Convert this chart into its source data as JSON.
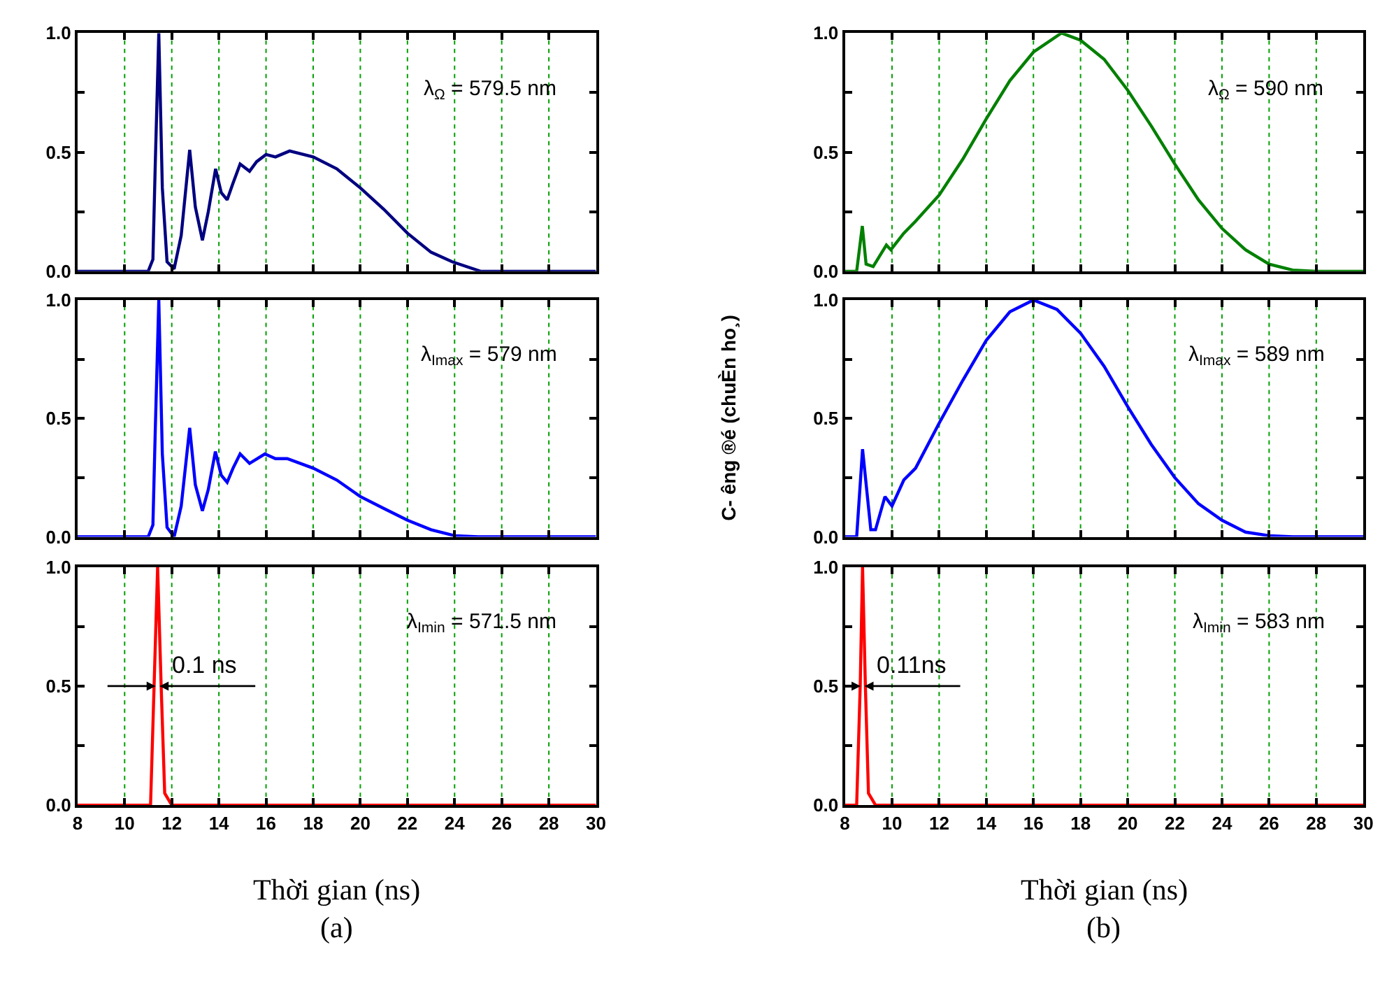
{
  "chart_data": [
    {
      "type": "line",
      "x": [
        8,
        11.0,
        11.2,
        11.3,
        11.45,
        11.6,
        11.8,
        12.1,
        12.4,
        12.76,
        13.0,
        13.3,
        13.55,
        13.86,
        14.1,
        14.35,
        14.6,
        14.9,
        15.3,
        15.6,
        16.0,
        16.4,
        17.0,
        18.0,
        19.0,
        20.0,
        21.0,
        22.0,
        23.0,
        23.9,
        25.1,
        26,
        30
      ],
      "series": [
        {
          "color": "#000080",
          "values": [
            0,
            0,
            0.05,
            0.45,
            1.0,
            0.35,
            0.04,
            0.01,
            0.15,
            0.51,
            0.27,
            0.13,
            0.25,
            0.43,
            0.33,
            0.3,
            0.37,
            0.45,
            0.42,
            0.46,
            0.49,
            0.48,
            0.505,
            0.48,
            0.43,
            0.35,
            0.26,
            0.16,
            0.08,
            0.04,
            0.0,
            0,
            0
          ]
        }
      ],
      "xlim": [
        8,
        30
      ],
      "xticks": [
        8,
        10,
        12,
        14,
        16,
        18,
        20,
        22,
        24,
        26,
        28,
        30
      ],
      "ylim": [
        0,
        1
      ],
      "yticks": [
        {
          "value": 0,
          "label": "0.0"
        },
        {
          "value": 0.25,
          "label": null
        },
        {
          "value": 0.5,
          "label": "0.5"
        },
        {
          "value": 0.75,
          "label": null
        },
        {
          "value": 1,
          "label": "1.0"
        }
      ],
      "grid": "x",
      "tick_labels": "y",
      "annotations": [
        "λ$_{Ω}$ = 579.5 nm"
      ]
    },
    {
      "type": "line",
      "x": [
        8,
        11.0,
        11.2,
        11.3,
        11.45,
        11.6,
        11.8,
        12.1,
        12.4,
        12.76,
        13.0,
        13.3,
        13.55,
        13.85,
        14.1,
        14.35,
        14.6,
        14.9,
        15.3,
        15.95,
        16.4,
        16.9,
        18.0,
        19.0,
        20.0,
        21.0,
        22.0,
        23.0,
        24.0,
        25.0,
        30
      ],
      "series": [
        {
          "color": "#0000ff",
          "values": [
            0,
            0,
            0.05,
            0.45,
            1.0,
            0.35,
            0.04,
            0.0,
            0.13,
            0.46,
            0.22,
            0.11,
            0.2,
            0.36,
            0.26,
            0.23,
            0.29,
            0.35,
            0.31,
            0.35,
            0.33,
            0.33,
            0.29,
            0.24,
            0.17,
            0.12,
            0.07,
            0.03,
            0.005,
            0,
            0
          ]
        }
      ],
      "xlim": [
        8,
        30
      ],
      "xticks": [
        8,
        10,
        12,
        14,
        16,
        18,
        20,
        22,
        24,
        26,
        28,
        30
      ],
      "ylim": [
        0,
        1
      ],
      "yticks": [
        {
          "value": 0,
          "label": "0.0"
        },
        {
          "value": 0.25,
          "label": null
        },
        {
          "value": 0.5,
          "label": "0.5"
        },
        {
          "value": 0.75,
          "label": null
        },
        {
          "value": 1,
          "label": "1.0"
        }
      ],
      "grid": "x",
      "tick_labels": "y",
      "annotations": [
        "λ$_{Imax}$ = 579 nm"
      ]
    },
    {
      "type": "line",
      "x": [
        8,
        11.1,
        11.25,
        11.4,
        11.55,
        11.7,
        12.0,
        30
      ],
      "series": [
        {
          "color": "#ff0000",
          "values": [
            0,
            0,
            0.5,
            1.0,
            0.5,
            0.05,
            0,
            0
          ]
        }
      ],
      "xlim": [
        8,
        30
      ],
      "xticks": [
        8,
        10,
        12,
        14,
        16,
        18,
        20,
        22,
        24,
        26,
        28,
        30
      ],
      "ylim": [
        0,
        1
      ],
      "yticks": [
        {
          "value": 0,
          "label": "0.0"
        },
        {
          "value": 0.25,
          "label": null
        },
        {
          "value": 0.5,
          "label": "0.5"
        },
        {
          "value": 0.75,
          "label": null
        },
        {
          "value": 1,
          "label": "1.0"
        }
      ],
      "grid": "x",
      "xlabel": "Thời gian (ns)",
      "annotations": [
        "λ$_{Imin}$ = 571.5 nm",
        {
          "text": "0.1 ns",
          "x": 11.4,
          "y": 0.5
        },
        "(a)"
      ]
    },
    {
      "type": "line",
      "x": [
        8,
        8.5,
        8.74,
        8.9,
        9.2,
        9.76,
        9.95,
        10.5,
        11.0,
        12.0,
        13.0,
        14.0,
        15.0,
        16.0,
        17.19,
        18.0,
        19.0,
        20.0,
        21.0,
        22.0,
        23.0,
        24.0,
        25.0,
        26.0,
        27.0,
        28.0,
        30
      ],
      "series": [
        {
          "color": "#008000",
          "values": [
            0,
            0,
            0.19,
            0.03,
            0.02,
            0.11,
            0.09,
            0.16,
            0.21,
            0.32,
            0.47,
            0.64,
            0.8,
            0.92,
            1.0,
            0.97,
            0.89,
            0.76,
            0.61,
            0.45,
            0.3,
            0.18,
            0.09,
            0.03,
            0.005,
            0,
            0
          ]
        }
      ],
      "xlim": [
        8,
        30
      ],
      "xticks": [
        8,
        10,
        12,
        14,
        16,
        18,
        20,
        22,
        24,
        26,
        28,
        30
      ],
      "ylim": [
        0,
        1
      ],
      "yticks": [
        {
          "value": 0,
          "label": "0.0"
        },
        {
          "value": 0.25,
          "label": null
        },
        {
          "value": 0.5,
          "label": "0.5"
        },
        {
          "value": 0.75,
          "label": null
        },
        {
          "value": 1,
          "label": "1.0"
        }
      ],
      "grid": "x",
      "tick_labels": "y",
      "annotations": [
        "λ$_{Ω}$ = 590 nm"
      ]
    },
    {
      "type": "line",
      "x": [
        8,
        8.5,
        8.75,
        9.1,
        9.3,
        9.7,
        10.0,
        10.5,
        11.0,
        12.0,
        13.0,
        14.0,
        15.0,
        16.0,
        17.0,
        18.0,
        19.0,
        20.0,
        21.0,
        22.0,
        23.0,
        24.0,
        25.0,
        26.0,
        27.0,
        30
      ],
      "series": [
        {
          "color": "#0000ff",
          "values": [
            0,
            0,
            0.37,
            0.03,
            0.03,
            0.17,
            0.13,
            0.24,
            0.29,
            0.48,
            0.66,
            0.83,
            0.95,
            1.0,
            0.96,
            0.86,
            0.72,
            0.55,
            0.39,
            0.25,
            0.14,
            0.07,
            0.02,
            0.005,
            0,
            0
          ]
        }
      ],
      "xlim": [
        8,
        30
      ],
      "xticks": [
        8,
        10,
        12,
        14,
        16,
        18,
        20,
        22,
        24,
        26,
        28,
        30
      ],
      "ylim": [
        0,
        1
      ],
      "yticks": [
        {
          "value": 0,
          "label": "0.0"
        },
        {
          "value": 0.25,
          "label": null
        },
        {
          "value": 0.5,
          "label": "0.5"
        },
        {
          "value": 0.75,
          "label": null
        },
        {
          "value": 1,
          "label": "1.0"
        }
      ],
      "grid": "x",
      "tick_labels": "y",
      "ylabel": "C- êng ®é (chuÈn ho¸)",
      "annotations": [
        "λ$_{Imax}$ = 589 nm"
      ]
    },
    {
      "type": "line",
      "x": [
        8,
        8.5,
        8.65,
        8.75,
        8.87,
        9.0,
        9.3,
        30
      ],
      "series": [
        {
          "color": "#ff0000",
          "values": [
            0,
            0,
            0.5,
            1.0,
            0.5,
            0.05,
            0,
            0
          ]
        }
      ],
      "xlim": [
        8,
        30
      ],
      "xticks": [
        8,
        10,
        12,
        14,
        16,
        18,
        20,
        22,
        24,
        26,
        28,
        30
      ],
      "ylim": [
        0,
        1
      ],
      "yticks": [
        {
          "value": 0,
          "label": "0.0"
        },
        {
          "value": 0.25,
          "label": null
        },
        {
          "value": 0.5,
          "label": "0.5"
        },
        {
          "value": 0.75,
          "label": null
        },
        {
          "value": 1,
          "label": "1.0"
        }
      ],
      "grid": "x",
      "xlabel": "Thời gian (ns)",
      "annotations": [
        "λ$_{Imin}$ = 583 nm",
        {
          "text": "0.11ns",
          "x": 8.75,
          "y": 0.5
        },
        "(b)"
      ]
    }
  ]
}
